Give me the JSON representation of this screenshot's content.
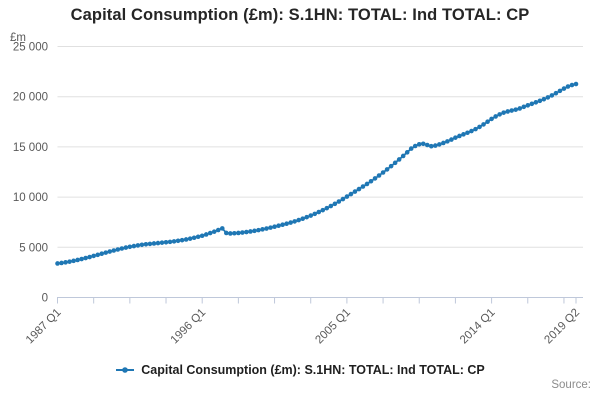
{
  "title": "Capital Consumption (£m): S.1HN: TOTAL: Ind TOTAL: CP",
  "source_label": "Source:",
  "legend": {
    "label": "Capital Consumption (£m): S.1HN: TOTAL: Ind TOTAL: CP"
  },
  "colors": {
    "series": "#1f77b4",
    "grid": "#e0e0e0",
    "axis": "#bfc8da",
    "tick_text": "#595959",
    "title_text": "#262626",
    "legend_text": "#1f1f1f",
    "source_text": "#8c8c8c"
  },
  "chart_data": {
    "type": "line",
    "title": "Capital Consumption (£m): S.1HN: TOTAL: Ind TOTAL: CP",
    "ylabel": "£m",
    "xlabel": "",
    "ylim": [
      0,
      25000
    ],
    "grid": "horizontal",
    "legend_position": "bottom",
    "marker": "circle",
    "y_axis": {
      "unit": "£m",
      "ticks": [
        {
          "value": 0,
          "label": "0"
        },
        {
          "value": 5000,
          "label": "5 000"
        },
        {
          "value": 10000,
          "label": "10 000"
        },
        {
          "value": 15000,
          "label": "15 000"
        },
        {
          "value": 20000,
          "label": "20 000"
        },
        {
          "value": 25000,
          "label": "25 000"
        }
      ]
    },
    "x_axis": {
      "start": "1987 Q1",
      "end": "2019 Q2",
      "frequency": "quarterly",
      "minor_tick_indices": [
        0,
        9,
        18,
        27,
        36,
        45,
        54,
        63,
        72,
        81,
        90,
        99,
        108,
        117,
        126,
        129
      ],
      "labels": [
        {
          "index": 0,
          "label": "1987 Q1"
        },
        {
          "index": 36,
          "label": "1996 Q1"
        },
        {
          "index": 72,
          "label": "2005 Q1"
        },
        {
          "index": 108,
          "label": "2014 Q1"
        },
        {
          "index": 129,
          "label": "2019 Q2"
        }
      ]
    },
    "series": [
      {
        "name": "Capital Consumption (£m): S.1HN: TOTAL: Ind TOTAL: CP",
        "values": [
          3390,
          3440,
          3500,
          3570,
          3650,
          3740,
          3830,
          3930,
          4030,
          4140,
          4250,
          4360,
          4470,
          4580,
          4680,
          4780,
          4880,
          4970,
          5050,
          5120,
          5190,
          5250,
          5300,
          5340,
          5380,
          5420,
          5460,
          5500,
          5540,
          5590,
          5650,
          5710,
          5780,
          5860,
          5950,
          6050,
          6150,
          6280,
          6420,
          6560,
          6720,
          6880,
          6430,
          6380,
          6400,
          6430,
          6470,
          6520,
          6580,
          6640,
          6710,
          6790,
          6870,
          6960,
          7050,
          7150,
          7250,
          7350,
          7460,
          7580,
          7710,
          7850,
          8000,
          8160,
          8330,
          8510,
          8700,
          8900,
          9110,
          9330,
          9560,
          9800,
          10050,
          10300,
          10550,
          10800,
          11050,
          11310,
          11580,
          11860,
          12150,
          12450,
          12760,
          13080,
          13410,
          13750,
          14100,
          14460,
          14830,
          15090,
          15260,
          15310,
          15190,
          15070,
          15130,
          15250,
          15390,
          15550,
          15730,
          15920,
          16090,
          16250,
          16410,
          16580,
          16770,
          16990,
          17240,
          17510,
          17790,
          18030,
          18240,
          18410,
          18530,
          18620,
          18710,
          18830,
          18990,
          19140,
          19290,
          19440,
          19590,
          19750,
          19930,
          20130,
          20350,
          20580,
          20810,
          21010,
          21160,
          21260
        ]
      }
    ]
  }
}
